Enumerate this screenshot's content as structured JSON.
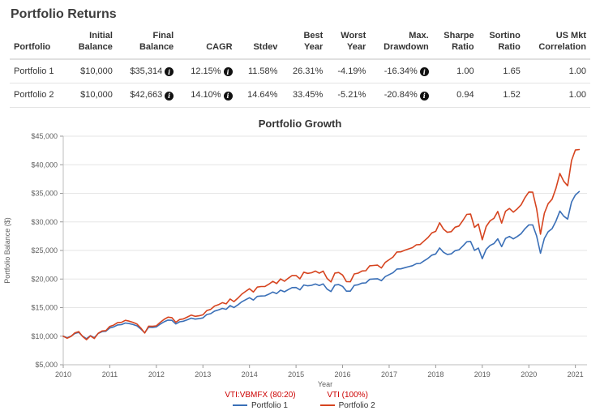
{
  "page": {
    "title": "Portfolio Returns"
  },
  "icons": {
    "info_glyph": "i"
  },
  "table": {
    "columns": [
      "Portfolio",
      "Initial\nBalance",
      "Final\nBalance",
      "CAGR",
      "Stdev",
      "Best\nYear",
      "Worst\nYear",
      "Max.\nDrawdown",
      "Sharpe\nRatio",
      "Sortino\nRatio",
      "US Mkt\nCorrelation"
    ],
    "rows": [
      {
        "cells": [
          {
            "text": "Portfolio 1"
          },
          {
            "text": "$10,000"
          },
          {
            "text": "$35,314",
            "info": true
          },
          {
            "text": "12.15%",
            "info": true
          },
          {
            "text": "11.58%"
          },
          {
            "text": "26.31%"
          },
          {
            "text": "-4.19%"
          },
          {
            "text": "-16.34%",
            "info": true
          },
          {
            "text": "1.00"
          },
          {
            "text": "1.65"
          },
          {
            "text": "1.00"
          }
        ]
      },
      {
        "cells": [
          {
            "text": "Portfolio 2"
          },
          {
            "text": "$10,000"
          },
          {
            "text": "$42,663",
            "info": true
          },
          {
            "text": "14.10%",
            "info": true
          },
          {
            "text": "14.64%"
          },
          {
            "text": "33.45%"
          },
          {
            "text": "-5.21%"
          },
          {
            "text": "-20.84%",
            "info": true
          },
          {
            "text": "0.94"
          },
          {
            "text": "1.52"
          },
          {
            "text": "1.00"
          }
        ]
      }
    ]
  },
  "chart_data": {
    "type": "line",
    "title": "Portfolio Growth",
    "xlabel": "Year",
    "ylabel": "Portfolio Balance ($)",
    "ylim": [
      5000,
      45000
    ],
    "ytick_step": 5000,
    "xlim": [
      2010,
      2021.25
    ],
    "x_ticks": [
      2010,
      2011,
      2012,
      2013,
      2014,
      2015,
      2016,
      2017,
      2018,
      2019,
      2020,
      2021
    ],
    "x_start": 2010,
    "x_step": 0.0833333,
    "grid": true,
    "legend_position": "bottom",
    "legend_label_color": "#cc0000",
    "series": [
      {
        "name": "Portfolio 1",
        "allocation_label": "VTI:VBMFX (80:20)",
        "color": "#3a6fb7",
        "values": [
          10000,
          9717,
          9986,
          10486,
          10659,
          9991,
          9548,
          10088,
          9730,
          10474,
          10806,
          10855,
          11442,
          11631,
          11962,
          12016,
          12301,
          12199,
          12029,
          11814,
          11262,
          10592,
          11563,
          11541,
          11621,
          12101,
          12514,
          12821,
          12766,
          12139,
          12524,
          12620,
          12879,
          13153,
          12981,
          13071,
          13203,
          13791,
          13941,
          14394,
          14585,
          14861,
          14702,
          15356,
          15020,
          15472,
          16000,
          16379,
          16728,
          16321,
          16956,
          17032,
          17054,
          17349,
          17719,
          17458,
          18053,
          17759,
          18152,
          18510,
          18519,
          18113,
          18963,
          18821,
          18906,
          19127,
          18876,
          19142,
          18233,
          17804,
          18938,
          19023,
          18713,
          17884,
          17879,
          18889,
          19004,
          19287,
          19328,
          19956,
          20014,
          20056,
          19713,
          20433,
          20770,
          21113,
          21748,
          21776,
          21979,
          22166,
          22337,
          22688,
          22736,
          23184,
          23604,
          24182,
          24388,
          25434,
          24694,
          24311,
          24401,
          24960,
          25112,
          25788,
          26523,
          26579,
          25019,
          25432,
          23553,
          25185,
          25883,
          26207,
          27038,
          25667,
          27117,
          27456,
          27030,
          27433,
          27930,
          28793,
          29475,
          29466,
          27548,
          24518,
          27120,
          28283,
          28818,
          30147,
          31898,
          30995,
          30490,
          33481,
          34703,
          35314
        ]
      },
      {
        "name": "Portfolio 2",
        "allocation_label": "VTI (100%)",
        "color": "#d6441f",
        "values": [
          10000,
          9640,
          9968,
          10586,
          10798,
          9945,
          9388,
          10045,
          9593,
          10504,
          10914,
          10969,
          11704,
          11938,
          12356,
          12418,
          12778,
          12637,
          12410,
          12125,
          11409,
          10553,
          11756,
          11721,
          11815,
          12418,
          12939,
          13327,
          13247,
          12426,
          12911,
          13027,
          13352,
          13699,
          13466,
          13574,
          13737,
          14493,
          14681,
          15268,
          15512,
          15869,
          15647,
          16508,
          16046,
          16640,
          17339,
          17842,
          18306,
          17738,
          18590,
          18683,
          18702,
          19094,
          19591,
          19219,
          20026,
          19605,
          20135,
          20618,
          20618,
          20041,
          21203,
          20991,
          21096,
          21391,
          21028,
          21385,
          20102,
          19499,
          21039,
          21145,
          20701,
          19542,
          19522,
          20889,
          21035,
          21414,
          21457,
          22315,
          22382,
          22427,
          21933,
          22920,
          23379,
          23846,
          24729,
          24753,
          25026,
          25276,
          25503,
          25988,
          26040,
          26665,
          27252,
          28069,
          28350,
          29853,
          28748,
          28173,
          28286,
          29078,
          29281,
          30247,
          31306,
          31369,
          29048,
          29629,
          26873,
          29184,
          30176,
          30629,
          31824,
          29787,
          31872,
          32350,
          31703,
          32274,
          32984,
          34237,
          35230,
          35195,
          32309,
          27850,
          31526,
          33197,
          33960,
          35896,
          38481,
          37096,
          36317,
          40748,
          42581,
          42663
        ]
      }
    ]
  }
}
